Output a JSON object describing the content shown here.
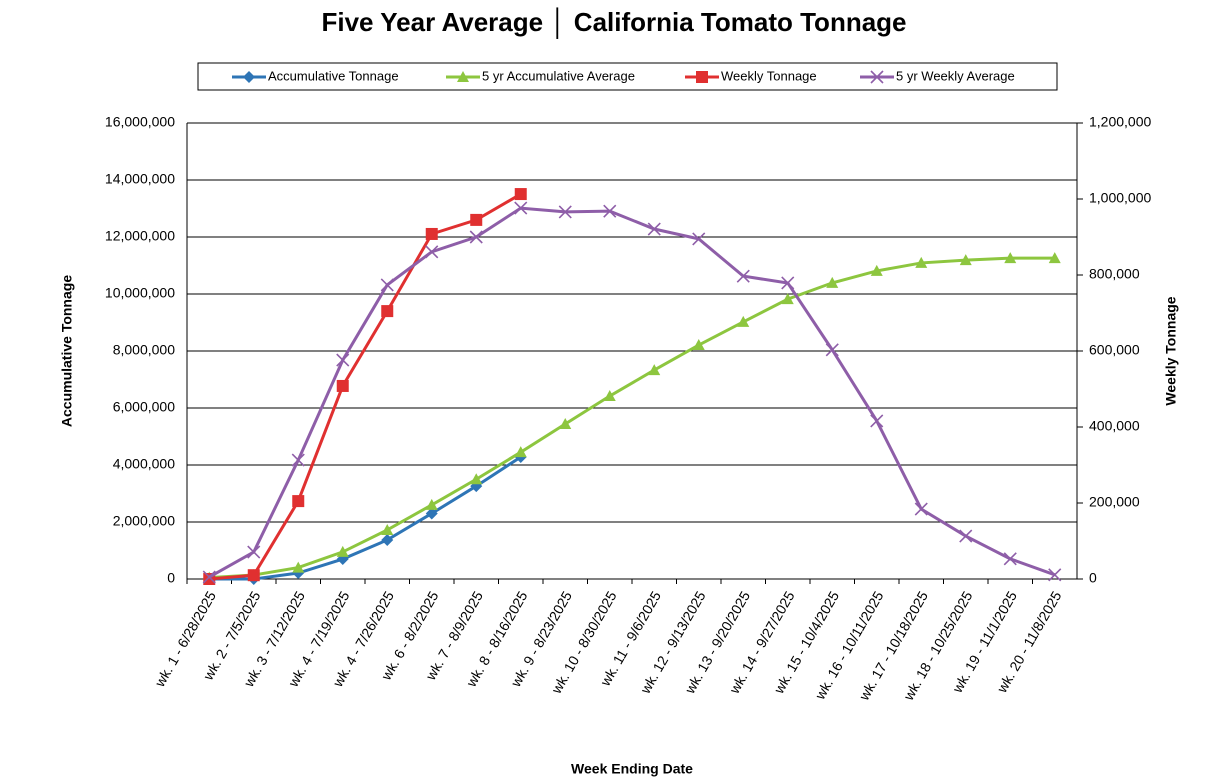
{
  "chart_data": {
    "type": "line",
    "title": "Five Year Average │ California Tomato Tonnage",
    "x_label": "Week Ending Date",
    "y_label": "Accumulative Tonnage",
    "y2_label": "Weekly Tonnage",
    "grid": true,
    "legend": "top",
    "categories": [
      "wk. 1 - 6/28/2025",
      "wk. 2 - 7/5/2025",
      "wk. 3 - 7/12/2025",
      "wk. 4 - 7/19/2025",
      "wk. 4 - 7/26/2025",
      "wk. 6 - 8/2/2025",
      "wk. 7 - 8/9/2025",
      "wk. 8 - 8/16/2025",
      "wk. 9 - 8/23/2025",
      "wk. 10 - 8/30/2025",
      "wk. 11 - 9/6/2025",
      "wk. 12 - 9/13/2025",
      "wk. 13 - 9/20/2025",
      "wk. 14 - 9/27/2025",
      "wk. 15 - 10/4/2025",
      "wk. 16 - 10/11/2025",
      "wk. 17 - 10/18/2025",
      "wk. 18 - 10/25/2025",
      "wk. 19 - 11/1/2025",
      "wk. 20 - 11/8/2025"
    ],
    "ylim": [
      0,
      16000000
    ],
    "yticks": [
      0,
      {
        "value": 2000000,
        "label": "2,000,000"
      },
      {
        "value": 4000000,
        "label": "4,000,000"
      },
      {
        "value": 6000000,
        "label": "6,000,000"
      },
      {
        "value": 8000000,
        "label": "8,000,000"
      },
      {
        "value": 10000000,
        "label": "10,000,000"
      },
      {
        "value": 12000000,
        "label": "12,000,000"
      },
      {
        "value": 14000000,
        "label": "14,000,000"
      },
      {
        "value": 16000000,
        "label": "16,000,000"
      }
    ],
    "y2lim": [
      0,
      1200000
    ],
    "y2ticks": [
      0,
      {
        "value": 200000,
        "label": "200,000"
      },
      {
        "value": 400000,
        "label": "400,000"
      },
      {
        "value": 600000,
        "label": "600,000"
      },
      {
        "value": 800000,
        "label": "800,000"
      },
      {
        "value": 1000000,
        "label": "1,000,000"
      },
      {
        "value": 1200000,
        "label": "1,200,000"
      }
    ],
    "series": [
      {
        "name": "Accumulative Tonnage",
        "color": "#2e75b6",
        "marker": "diamond",
        "values": [
          0,
          0,
          210000,
          700000,
          1370000,
          2300000,
          3260000,
          4280000,
          null,
          null,
          null,
          null,
          null,
          null,
          null,
          null,
          null,
          null,
          null,
          null
        ]
      },
      {
        "name": "5 yr Accumulative Average",
        "color": "#8dc63f",
        "marker": "triangle",
        "values": [
          50000,
          140000,
          400000,
          950000,
          1720000,
          2600000,
          3500000,
          4450000,
          5440000,
          6420000,
          7330000,
          8210000,
          9020000,
          9820000,
          10390000,
          10810000,
          11090000,
          11190000,
          11260000,
          11260000
        ]
      },
      {
        "name": "Weekly Tonnage",
        "color": "#e03030",
        "marker": "square",
        "axis": "y2",
        "values": [
          0,
          10000,
          205000,
          508000,
          705000,
          908000,
          945000,
          1013000,
          null,
          null,
          null,
          null,
          null,
          null,
          null,
          null,
          null,
          null,
          null,
          null
        ]
      },
      {
        "name": "5 yr Weekly Average",
        "color": "#8e5ea8",
        "marker": "x",
        "axis": "y2",
        "values": [
          5000,
          71000,
          313000,
          576000,
          774000,
          861000,
          900000,
          976000,
          966000,
          968000,
          921000,
          895000,
          797000,
          779000,
          603000,
          416000,
          184000,
          113000,
          53000,
          11000
        ]
      }
    ]
  }
}
